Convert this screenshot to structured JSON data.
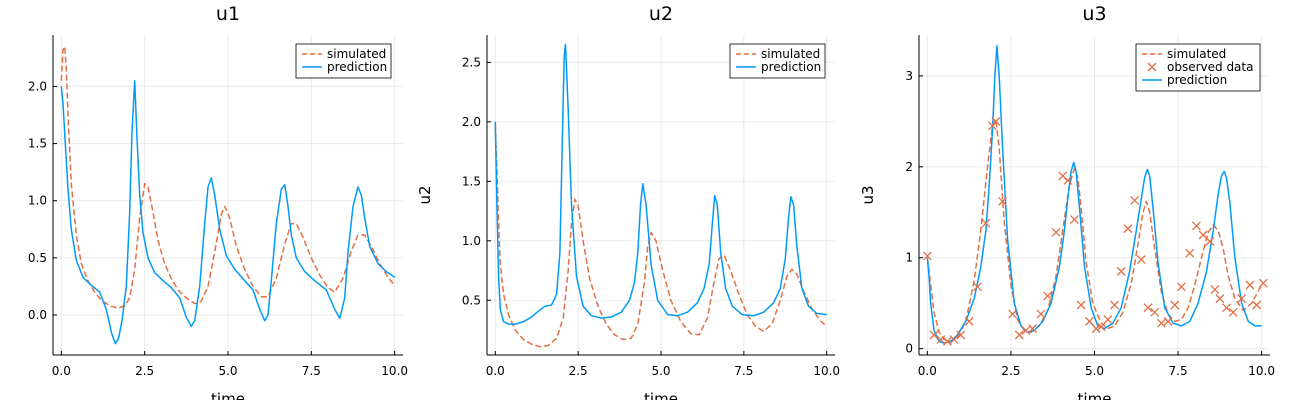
{
  "chart_data": [
    {
      "type": "line",
      "title": "u1",
      "xlabel": "time",
      "ylabel": "",
      "xlim": [
        -0.25,
        10.25
      ],
      "ylim": [
        -0.35,
        2.45
      ],
      "xticks": [
        0,
        2.5,
        5,
        7.5,
        10
      ],
      "xtick_labels": [
        "0.0",
        "2.5",
        "5.0",
        "7.5",
        "10.0"
      ],
      "yticks": [
        0,
        0.5,
        1,
        1.5,
        2
      ],
      "ytick_labels": [
        "0.0",
        "0.5",
        "1.0",
        "1.5",
        "2.0"
      ],
      "grid": true,
      "legend_position": "top-right",
      "series": [
        {
          "name": "simulated",
          "style": "dashed",
          "color": "#e26f46",
          "x": [
            0,
            0.05,
            0.1,
            0.15,
            0.2,
            0.3,
            0.45,
            0.6,
            0.8,
            1.0,
            1.2,
            1.45,
            1.7,
            1.9,
            2.05,
            2.2,
            2.35,
            2.5,
            2.6,
            2.75,
            2.9,
            3.1,
            3.3,
            3.5,
            3.75,
            4.0,
            4.2,
            4.4,
            4.6,
            4.8,
            4.9,
            5.05,
            5.25,
            5.5,
            5.75,
            6.0,
            6.2,
            6.45,
            6.7,
            6.9,
            7.05,
            7.25,
            7.5,
            7.75,
            8.0,
            8.2,
            8.45,
            8.7,
            8.9,
            9.1,
            9.3,
            9.55,
            9.8,
            10.0
          ],
          "y": [
            2.05,
            2.32,
            2.35,
            2.15,
            1.75,
            1.15,
            0.7,
            0.45,
            0.3,
            0.2,
            0.13,
            0.08,
            0.06,
            0.08,
            0.15,
            0.4,
            0.85,
            1.15,
            1.12,
            0.9,
            0.65,
            0.45,
            0.32,
            0.22,
            0.15,
            0.1,
            0.12,
            0.25,
            0.55,
            0.88,
            0.95,
            0.85,
            0.6,
            0.4,
            0.25,
            0.16,
            0.16,
            0.32,
            0.62,
            0.8,
            0.8,
            0.68,
            0.5,
            0.35,
            0.24,
            0.2,
            0.32,
            0.56,
            0.7,
            0.7,
            0.6,
            0.45,
            0.33,
            0.26
          ]
        },
        {
          "name": "prediction",
          "style": "solid",
          "color": "#009af9",
          "x": [
            0,
            0.05,
            0.12,
            0.2,
            0.3,
            0.45,
            0.65,
            0.9,
            1.15,
            1.35,
            1.5,
            1.62,
            1.72,
            1.82,
            1.95,
            2.05,
            2.12,
            2.2,
            2.27,
            2.35,
            2.45,
            2.6,
            2.8,
            3.05,
            3.3,
            3.55,
            3.75,
            3.9,
            4.0,
            4.15,
            4.3,
            4.4,
            4.5,
            4.6,
            4.75,
            4.95,
            5.2,
            5.5,
            5.75,
            5.95,
            6.1,
            6.2,
            6.3,
            6.45,
            6.6,
            6.7,
            6.8,
            6.9,
            7.05,
            7.3,
            7.6,
            7.95,
            8.2,
            8.35,
            8.5,
            8.6,
            8.75,
            8.9,
            9.0,
            9.1,
            9.25,
            9.5,
            9.75,
            10.0
          ],
          "y": [
            2.0,
            1.85,
            1.5,
            1.1,
            0.75,
            0.48,
            0.33,
            0.26,
            0.2,
            0.05,
            -0.15,
            -0.25,
            -0.2,
            -0.05,
            0.25,
            0.9,
            1.6,
            2.05,
            1.55,
            1.05,
            0.72,
            0.5,
            0.37,
            0.3,
            0.24,
            0.15,
            -0.02,
            -0.1,
            -0.05,
            0.25,
            0.8,
            1.12,
            1.2,
            1.05,
            0.75,
            0.52,
            0.4,
            0.3,
            0.22,
            0.05,
            -0.05,
            0.0,
            0.3,
            0.8,
            1.1,
            1.14,
            0.95,
            0.7,
            0.5,
            0.38,
            0.3,
            0.22,
            0.05,
            -0.03,
            0.15,
            0.55,
            0.95,
            1.12,
            1.05,
            0.85,
            0.6,
            0.45,
            0.38,
            0.33
          ]
        }
      ]
    },
    {
      "type": "line",
      "title": "u2",
      "xlabel": "time",
      "ylabel": "u2",
      "xlim": [
        -0.25,
        10.25
      ],
      "ylim": [
        0.04,
        2.73
      ],
      "xticks": [
        0,
        2.5,
        5,
        7.5,
        10
      ],
      "xtick_labels": [
        "0.0",
        "2.5",
        "5.0",
        "7.5",
        "10.0"
      ],
      "yticks": [
        0.5,
        1,
        1.5,
        2,
        2.5
      ],
      "ytick_labels": [
        "0.5",
        "1.0",
        "1.5",
        "2.0",
        "2.5"
      ],
      "grid": true,
      "legend_position": "top-right",
      "series": [
        {
          "name": "simulated",
          "style": "dashed",
          "color": "#e26f46",
          "x": [
            0,
            0.05,
            0.1,
            0.15,
            0.25,
            0.4,
            0.6,
            0.85,
            1.1,
            1.35,
            1.6,
            1.85,
            2.05,
            2.2,
            2.3,
            2.4,
            2.5,
            2.65,
            2.85,
            3.1,
            3.35,
            3.6,
            3.85,
            4.1,
            4.3,
            4.5,
            4.6,
            4.7,
            4.85,
            5.05,
            5.3,
            5.6,
            5.9,
            6.15,
            6.4,
            6.6,
            6.75,
            6.9,
            7.1,
            7.35,
            7.6,
            7.85,
            8.1,
            8.35,
            8.6,
            8.8,
            8.95,
            9.1,
            9.3,
            9.55,
            9.8,
            10.0
          ],
          "y": [
            1.98,
            1.6,
            1.15,
            0.8,
            0.55,
            0.38,
            0.25,
            0.17,
            0.13,
            0.11,
            0.12,
            0.18,
            0.35,
            0.75,
            1.15,
            1.35,
            1.3,
            1.0,
            0.68,
            0.45,
            0.3,
            0.21,
            0.17,
            0.18,
            0.3,
            0.65,
            0.95,
            1.07,
            1.0,
            0.75,
            0.5,
            0.32,
            0.22,
            0.21,
            0.35,
            0.65,
            0.85,
            0.88,
            0.75,
            0.55,
            0.38,
            0.28,
            0.24,
            0.3,
            0.5,
            0.7,
            0.76,
            0.72,
            0.58,
            0.43,
            0.33,
            0.28
          ]
        },
        {
          "name": "prediction",
          "style": "solid",
          "color": "#009af9",
          "x": [
            0,
            0.05,
            0.1,
            0.15,
            0.25,
            0.4,
            0.6,
            0.85,
            1.1,
            1.35,
            1.5,
            1.7,
            1.85,
            1.95,
            2.02,
            2.08,
            2.12,
            2.2,
            2.3,
            2.45,
            2.65,
            2.9,
            3.2,
            3.5,
            3.8,
            4.05,
            4.2,
            4.3,
            4.38,
            4.45,
            4.55,
            4.7,
            4.9,
            5.2,
            5.5,
            5.8,
            6.1,
            6.3,
            6.45,
            6.55,
            6.62,
            6.7,
            6.8,
            6.95,
            7.15,
            7.45,
            7.8,
            8.1,
            8.4,
            8.6,
            8.75,
            8.85,
            8.92,
            9.0,
            9.1,
            9.25,
            9.45,
            9.7,
            10.0
          ],
          "y": [
            2.0,
            1.3,
            0.7,
            0.42,
            0.32,
            0.3,
            0.3,
            0.32,
            0.36,
            0.42,
            0.45,
            0.46,
            0.55,
            0.9,
            1.8,
            2.55,
            2.65,
            2.1,
            1.3,
            0.7,
            0.45,
            0.37,
            0.35,
            0.36,
            0.4,
            0.5,
            0.65,
            0.9,
            1.3,
            1.48,
            1.3,
            0.8,
            0.5,
            0.38,
            0.37,
            0.4,
            0.48,
            0.6,
            0.8,
            1.15,
            1.38,
            1.3,
            0.9,
            0.6,
            0.45,
            0.38,
            0.37,
            0.4,
            0.48,
            0.6,
            0.85,
            1.2,
            1.37,
            1.3,
            0.95,
            0.6,
            0.45,
            0.39,
            0.38
          ]
        }
      ]
    },
    {
      "type": "line",
      "title": "u3",
      "xlabel": "time",
      "ylabel": "u3",
      "xlim": [
        -0.25,
        10.25
      ],
      "ylim": [
        -0.07,
        3.45
      ],
      "xticks": [
        0,
        2.5,
        5,
        7.5,
        10
      ],
      "xtick_labels": [
        "0.0",
        "2.5",
        "5.0",
        "7.5",
        "10.0"
      ],
      "yticks": [
        0,
        1,
        2,
        3
      ],
      "ytick_labels": [
        "0",
        "1",
        "2",
        "3"
      ],
      "grid": true,
      "legend_position": "top-right",
      "series": [
        {
          "name": "simulated",
          "style": "dashed",
          "color": "#e26f46",
          "x": [
            0,
            0.1,
            0.2,
            0.35,
            0.5,
            0.7,
            0.9,
            1.15,
            1.4,
            1.6,
            1.8,
            1.95,
            2.05,
            2.15,
            2.3,
            2.5,
            2.7,
            2.9,
            3.1,
            3.35,
            3.6,
            3.85,
            4.05,
            4.25,
            4.4,
            4.5,
            4.6,
            4.75,
            4.95,
            5.2,
            5.4,
            5.6,
            5.85,
            6.1,
            6.3,
            6.45,
            6.55,
            6.65,
            6.8,
            7.0,
            7.2,
            7.4,
            7.6,
            7.8,
            8.0,
            8.2,
            8.4,
            8.55,
            8.7,
            8.85,
            9.0,
            9.2,
            9.45,
            9.7,
            10.0
          ],
          "y": [
            1.0,
            0.7,
            0.4,
            0.18,
            0.1,
            0.08,
            0.12,
            0.3,
            0.75,
            1.3,
            2.0,
            2.45,
            2.52,
            2.2,
            1.4,
            0.7,
            0.32,
            0.2,
            0.18,
            0.25,
            0.42,
            0.8,
            1.3,
            1.8,
            1.98,
            1.88,
            1.55,
            0.95,
            0.5,
            0.28,
            0.22,
            0.25,
            0.4,
            0.72,
            1.15,
            1.5,
            1.62,
            1.5,
            1.1,
            0.62,
            0.38,
            0.3,
            0.32,
            0.45,
            0.7,
            1.0,
            1.28,
            1.36,
            1.3,
            1.1,
            0.8,
            0.55,
            0.42,
            0.5,
            0.7
          ]
        },
        {
          "name": "prediction",
          "style": "solid",
          "color": "#009af9",
          "x": [
            0,
            0.05,
            0.1,
            0.2,
            0.35,
            0.5,
            0.7,
            0.9,
            1.15,
            1.4,
            1.6,
            1.75,
            1.85,
            1.95,
            2.02,
            2.08,
            2.15,
            2.25,
            2.4,
            2.6,
            2.8,
            3.0,
            3.2,
            3.45,
            3.7,
            3.95,
            4.1,
            4.2,
            4.3,
            4.38,
            4.45,
            4.55,
            4.7,
            4.9,
            5.1,
            5.3,
            5.55,
            5.8,
            6.05,
            6.25,
            6.4,
            6.5,
            6.58,
            6.65,
            6.75,
            6.9,
            7.1,
            7.35,
            7.6,
            7.85,
            8.1,
            8.35,
            8.55,
            8.7,
            8.8,
            8.88,
            8.95,
            9.05,
            9.2,
            9.4,
            9.6,
            9.8,
            10.0
          ],
          "y": [
            1.0,
            0.8,
            0.5,
            0.2,
            0.08,
            0.06,
            0.08,
            0.15,
            0.3,
            0.55,
            0.9,
            1.3,
            1.8,
            2.4,
            3.0,
            3.33,
            3.0,
            2.2,
            1.2,
            0.5,
            0.25,
            0.18,
            0.2,
            0.3,
            0.5,
            0.9,
            1.3,
            1.65,
            1.95,
            2.05,
            1.95,
            1.55,
            0.9,
            0.45,
            0.25,
            0.22,
            0.28,
            0.45,
            0.85,
            1.3,
            1.65,
            1.88,
            1.97,
            1.9,
            1.55,
            0.95,
            0.45,
            0.28,
            0.25,
            0.3,
            0.5,
            0.85,
            1.3,
            1.7,
            1.9,
            1.95,
            1.88,
            1.6,
            1.0,
            0.5,
            0.3,
            0.25,
            0.25
          ]
        },
        {
          "name": "observed data",
          "style": "markers",
          "marker": "x",
          "color": "#e26f46",
          "x": [
            0.0,
            0.2,
            0.4,
            0.6,
            0.8,
            1.0,
            1.25,
            1.5,
            1.75,
            1.95,
            2.05,
            2.25,
            2.55,
            2.75,
            2.95,
            3.15,
            3.4,
            3.6,
            3.85,
            4.05,
            4.2,
            4.4,
            4.6,
            4.85,
            5.05,
            5.2,
            5.4,
            5.6,
            5.8,
            6.0,
            6.2,
            6.4,
            6.6,
            6.8,
            7.0,
            7.2,
            7.4,
            7.6,
            7.85,
            8.05,
            8.25,
            8.45,
            8.6,
            8.75,
            8.95,
            9.15,
            9.4,
            9.65,
            9.85,
            10.05
          ],
          "y": [
            1.02,
            0.15,
            0.1,
            0.08,
            0.1,
            0.15,
            0.3,
            0.68,
            1.38,
            2.45,
            2.5,
            1.62,
            0.38,
            0.15,
            0.2,
            0.22,
            0.38,
            0.58,
            1.28,
            1.9,
            1.85,
            1.42,
            0.48,
            0.3,
            0.22,
            0.24,
            0.32,
            0.48,
            0.85,
            1.32,
            1.63,
            0.98,
            0.45,
            0.4,
            0.28,
            0.3,
            0.48,
            0.68,
            1.05,
            1.35,
            1.25,
            1.18,
            0.65,
            0.55,
            0.45,
            0.4,
            0.55,
            0.7,
            0.48,
            0.72
          ]
        }
      ]
    }
  ]
}
